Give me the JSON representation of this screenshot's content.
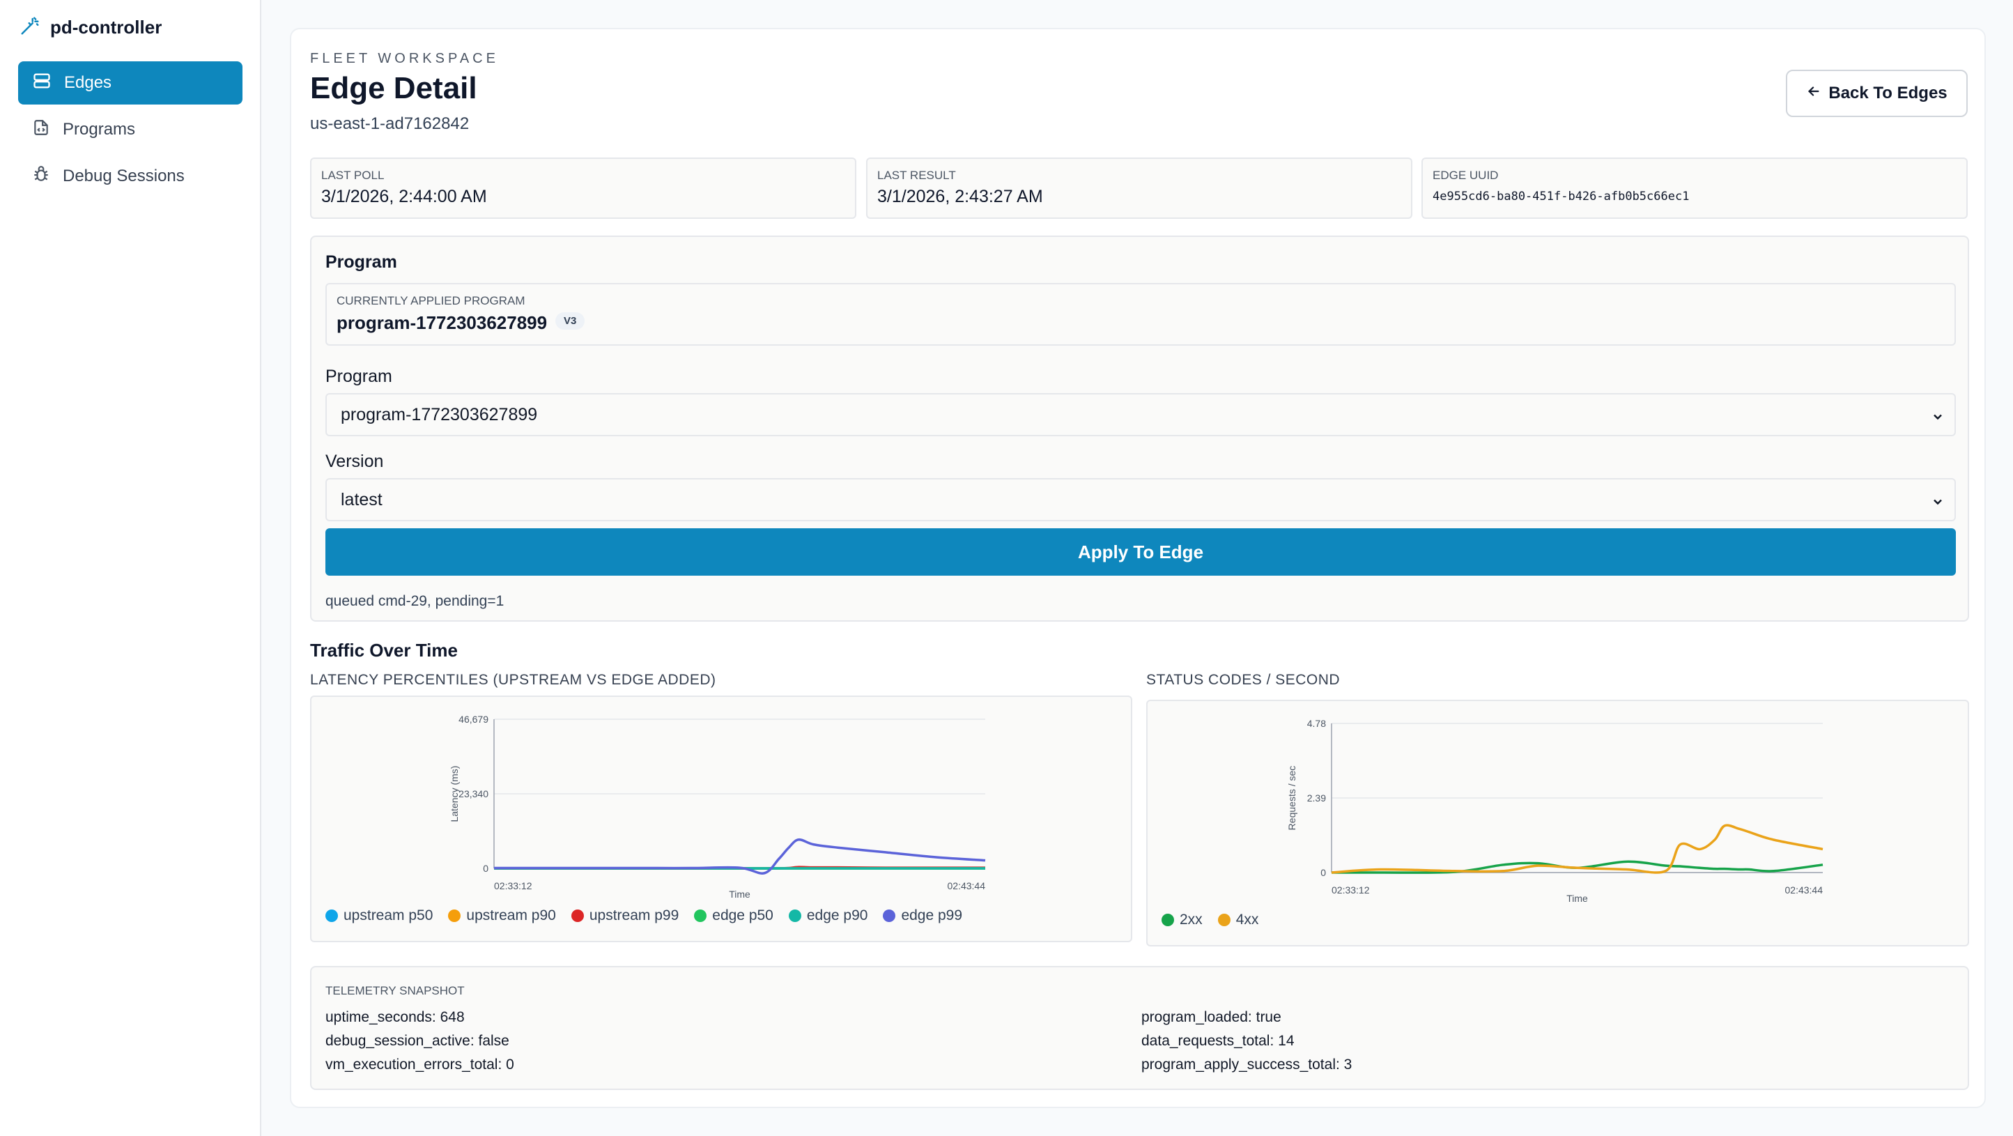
{
  "brand": {
    "name": "pd-controller",
    "icon": "magic-wand-icon"
  },
  "sidebar": {
    "items": [
      {
        "label": "Edges",
        "icon": "server-icon",
        "active": true
      },
      {
        "label": "Programs",
        "icon": "file-code-icon",
        "active": false
      },
      {
        "label": "Debug Sessions",
        "icon": "bug-icon",
        "active": false
      }
    ]
  },
  "header": {
    "eyebrow": "FLEET WORKSPACE",
    "title": "Edge Detail",
    "subtitle": "us-east-1-ad7162842",
    "back_button": "Back To Edges"
  },
  "info": [
    {
      "label": "Last Poll",
      "value": "3/1/2026, 2:44:00 AM"
    },
    {
      "label": "Last Result",
      "value": "3/1/2026, 2:43:27 AM"
    },
    {
      "label": "Edge UUID",
      "value": "4e955cd6-ba80-451f-b426-afb0b5c66ec1"
    }
  ],
  "program": {
    "section_title": "Program",
    "applied_label": "Currently Applied Program",
    "applied_value": "program-1772303627899",
    "applied_version": "V3",
    "program_label": "Program",
    "program_selected": "program-1772303627899",
    "version_label": "Version",
    "version_selected": "latest",
    "apply_button": "Apply To Edge",
    "status": "queued cmd-29, pending=1"
  },
  "traffic": {
    "title": "Traffic Over Time",
    "latency_label": "Latency Percentiles (Upstream vs Edge Added)",
    "status_label": "Status Codes / Second"
  },
  "colors": {
    "accent": "#0e87bd",
    "upstream_p50": "#0ea5e9",
    "upstream_p90": "#f59e0b",
    "upstream_p99": "#dc2626",
    "edge_p50": "#22c55e",
    "edge_p90": "#14b8a6",
    "edge_p99": "#5b63d9",
    "s2xx": "#16a34a",
    "s4xx": "#eaa31a"
  },
  "chart_data": [
    {
      "type": "line",
      "title": "LATENCY PERCENTILES (UPSTREAM VS EDGE ADDED)",
      "xlabel": "Time",
      "ylabel": "Latency (ms)",
      "x_ticks": [
        "02:33:12",
        "02:43:44"
      ],
      "y_ticks": [
        "0",
        "23,340",
        "46,679"
      ],
      "ylim": [
        0,
        46679
      ],
      "x": [
        0,
        0.1,
        0.2,
        0.3,
        0.4,
        0.5,
        0.55,
        0.58,
        0.6,
        0.62,
        0.65,
        0.7,
        0.8,
        0.9,
        1.0
      ],
      "series": [
        {
          "name": "upstream p50",
          "color": "#0ea5e9",
          "values": [
            0,
            0,
            0,
            0,
            0,
            0,
            0,
            0,
            0,
            0,
            0,
            0,
            0,
            0,
            0
          ]
        },
        {
          "name": "upstream p90",
          "color": "#f59e0b",
          "values": [
            0,
            0,
            0,
            0,
            0,
            0,
            0,
            0,
            0,
            0,
            0,
            0,
            0,
            0,
            0
          ]
        },
        {
          "name": "upstream p99",
          "color": "#dc2626",
          "values": [
            0,
            0,
            0,
            0,
            0,
            0,
            0,
            0,
            100,
            400,
            300,
            300,
            200,
            200,
            200
          ]
        },
        {
          "name": "edge p50",
          "color": "#22c55e",
          "values": [
            0,
            0,
            0,
            0,
            0,
            0,
            0,
            0,
            0,
            0,
            0,
            0,
            0,
            0,
            0
          ]
        },
        {
          "name": "edge p90",
          "color": "#14b8a6",
          "values": [
            0,
            0,
            0,
            0,
            0,
            0,
            0,
            0,
            0,
            0,
            0,
            0,
            0,
            0,
            0
          ]
        },
        {
          "name": "edge p99",
          "color": "#5b63d9",
          "values": [
            100,
            100,
            100,
            100,
            100,
            200,
            -1500,
            3000,
            6500,
            9000,
            7500,
            6500,
            5000,
            3500,
            2500
          ]
        }
      ],
      "legend_position": "bottom"
    },
    {
      "type": "line",
      "title": "STATUS CODES / SECOND",
      "xlabel": "Time",
      "ylabel": "Requests / sec",
      "x_ticks": [
        "02:33:12",
        "02:43:44"
      ],
      "y_ticks": [
        "0",
        "2.39",
        "4.78"
      ],
      "ylim": [
        0,
        4.78
      ],
      "x": [
        0,
        0.1,
        0.25,
        0.35,
        0.42,
        0.5,
        0.6,
        0.68,
        0.71,
        0.75,
        0.78,
        0.8,
        0.83,
        0.85,
        0.9,
        1.0
      ],
      "series": [
        {
          "name": "2xx",
          "color": "#16a34a",
          "values": [
            0,
            0,
            0.02,
            0.25,
            0.3,
            0.15,
            0.35,
            0.22,
            0.2,
            0.15,
            0.12,
            0.12,
            0.1,
            0.1,
            0.05,
            0.25
          ]
        },
        {
          "name": "4xx",
          "color": "#eaa31a",
          "values": [
            0,
            0.1,
            0.05,
            0.05,
            0.22,
            0.15,
            0.1,
            0.05,
            0.9,
            0.75,
            1.05,
            1.5,
            1.4,
            1.3,
            1.05,
            0.75
          ]
        }
      ],
      "legend_position": "bottom-left"
    }
  ],
  "telemetry": {
    "label": "Telemetry Snapshot",
    "left": [
      "uptime_seconds: 648",
      "debug_session_active: false",
      "vm_execution_errors_total: 0"
    ],
    "right": [
      "program_loaded: true",
      "data_requests_total: 14",
      "program_apply_success_total: 3"
    ]
  }
}
